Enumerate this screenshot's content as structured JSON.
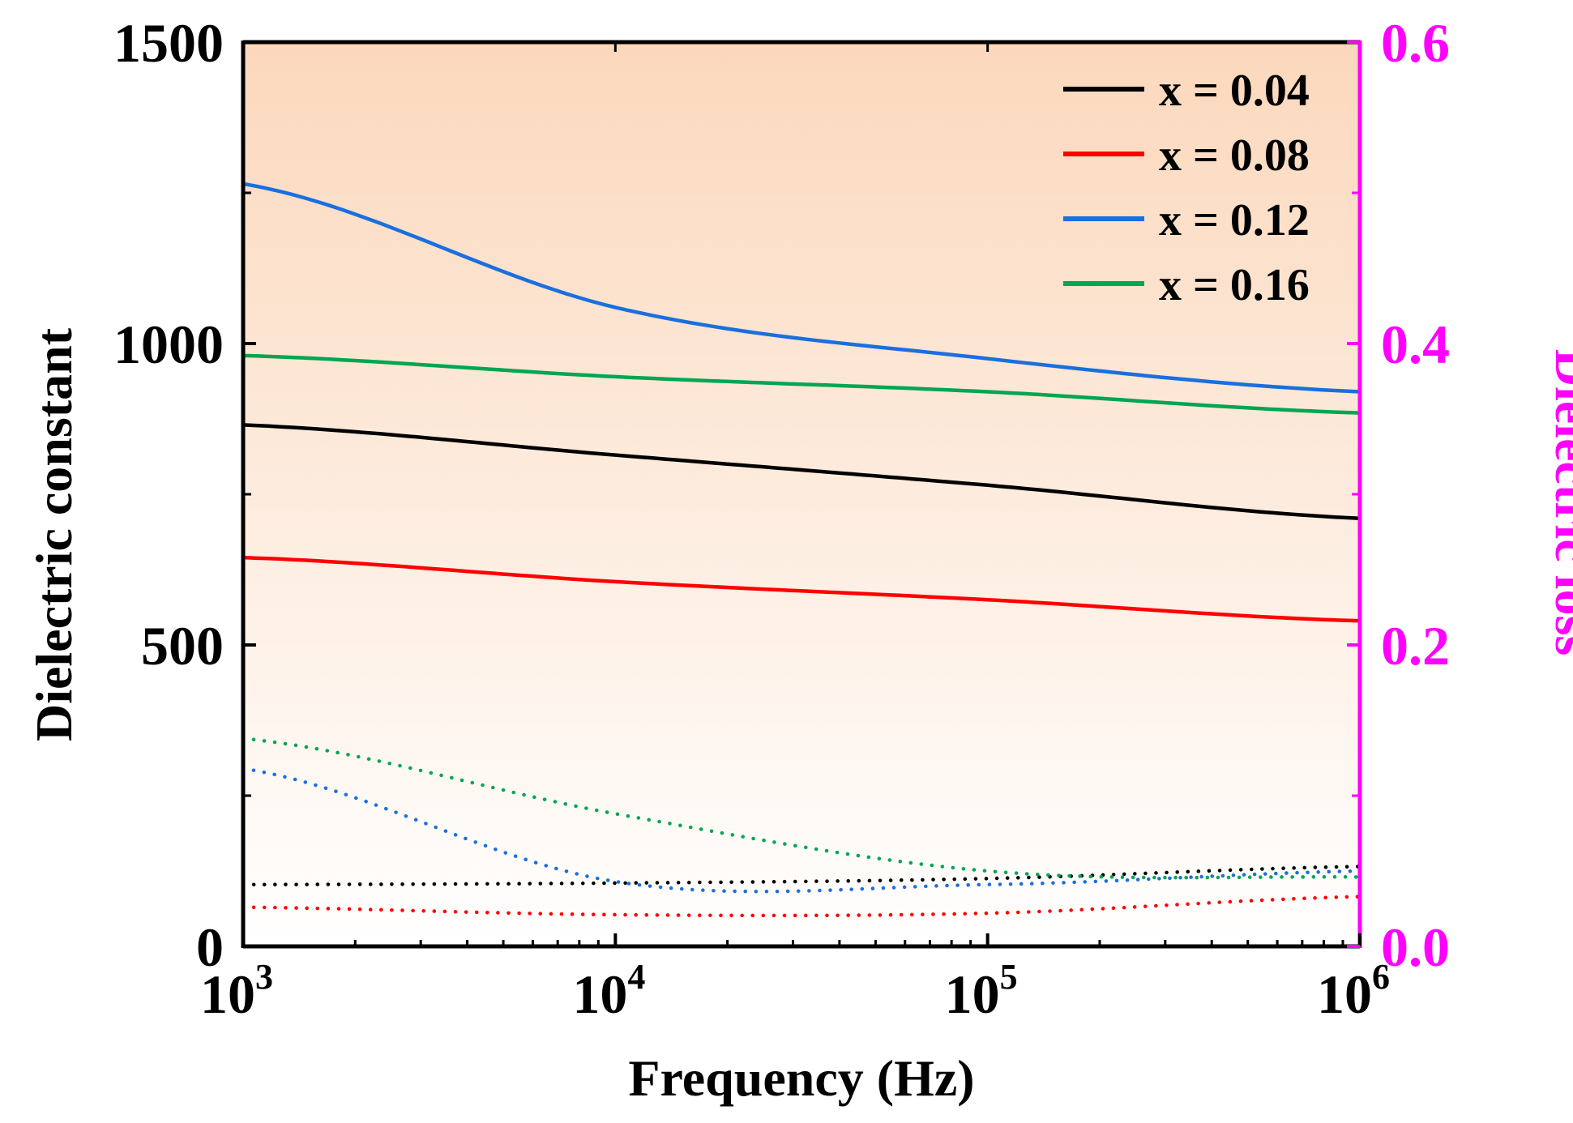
{
  "chart_data": {
    "type": "line",
    "xlabel": "Frequency (Hz)",
    "ylabel": "Dielectric constant",
    "y2label": "Dielectric loss",
    "x_scale": "log",
    "xlim": [
      1000,
      1000000
    ],
    "ylim": [
      0,
      1500
    ],
    "y2lim": [
      0,
      0.6
    ],
    "x_ticks": [
      {
        "value": 1000,
        "base": "10",
        "exp": "3"
      },
      {
        "value": 10000,
        "base": "10",
        "exp": "4"
      },
      {
        "value": 100000,
        "base": "10",
        "exp": "5"
      },
      {
        "value": 1000000,
        "base": "10",
        "exp": "6"
      }
    ],
    "y_ticks": [
      "0",
      "500",
      "1000",
      "1500"
    ],
    "y2_ticks": [
      "0.0",
      "0.2",
      "0.4",
      "0.6"
    ],
    "legend_position": "top-right",
    "colors": {
      "y2_axis": "#ff00ff",
      "background_top": "#fbd8bc",
      "background_bottom": "#ffffff"
    },
    "x": [
      1000,
      10000,
      100000,
      1000000
    ],
    "series": [
      {
        "name": "x = 0.04",
        "color": "#000000",
        "dielectric_constant": [
          865,
          815,
          765,
          710
        ],
        "dielectric_loss": [
          0.041,
          0.042,
          0.045,
          0.053
        ]
      },
      {
        "name": "x = 0.08",
        "color": "#ff0000",
        "dielectric_constant": [
          645,
          605,
          575,
          540
        ],
        "dielectric_loss": [
          0.026,
          0.021,
          0.022,
          0.033
        ]
      },
      {
        "name": "x = 0.12",
        "color": "#1a6fdf",
        "dielectric_constant": [
          1265,
          1060,
          975,
          920
        ],
        "dielectric_loss": [
          0.118,
          0.043,
          0.041,
          0.05
        ]
      },
      {
        "name": "x = 0.16",
        "color": "#00a651",
        "dielectric_constant": [
          980,
          945,
          920,
          885
        ],
        "dielectric_loss": [
          0.138,
          0.088,
          0.05,
          0.046
        ]
      }
    ]
  }
}
